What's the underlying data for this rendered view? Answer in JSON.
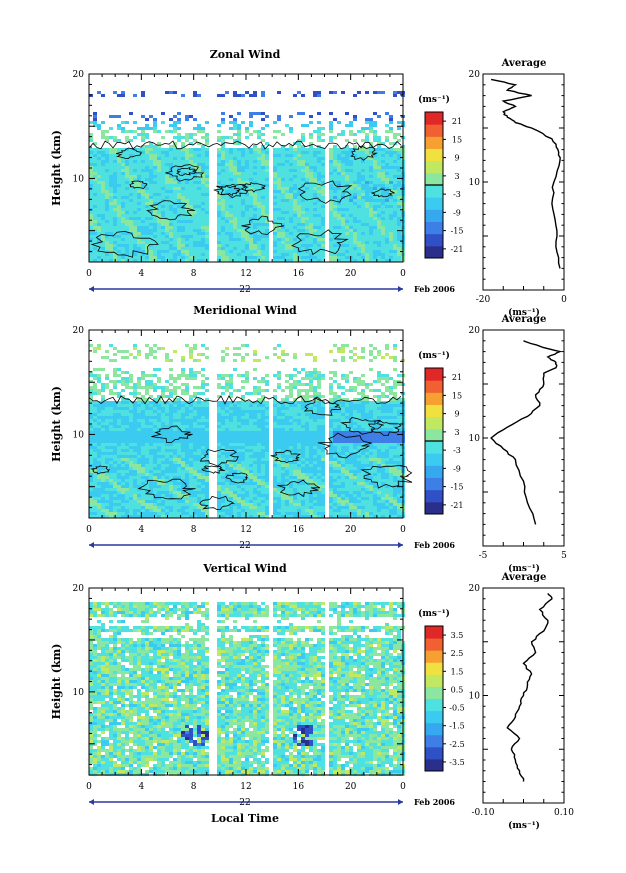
{
  "figure": {
    "xlabel": "Local Time",
    "date_label": "Feb 2006",
    "x_ticks": [
      "0",
      "4",
      "8",
      "12",
      "16",
      "20",
      "0"
    ],
    "y_ticks": [
      "20",
      "10"
    ],
    "ylabel": "Height (km)"
  },
  "chart_data": [
    {
      "type": "heatmap",
      "title": "Zonal Wind",
      "day_label": "22",
      "xlim": [
        0,
        24
      ],
      "ylim": [
        2,
        20
      ],
      "colorbar": {
        "unit": "(ms⁻¹)",
        "ticks": [
          "21",
          "15",
          "9",
          "3",
          "-3",
          "-9",
          "-15",
          "-21"
        ],
        "range": [
          -24,
          24
        ],
        "contour": 0
      },
      "data_gaps_hours": [
        [
          9.2,
          9.8
        ],
        [
          13.8,
          14.2
        ],
        [
          18.0,
          18.4
        ]
      ],
      "profile": {
        "title": "Average",
        "xlim": [
          -20,
          0
        ],
        "x_ticks": [
          "-20",
          "0"
        ],
        "xlabel": "(ms⁻¹)",
        "height_km": [
          2,
          4,
          6,
          8,
          10,
          12,
          13,
          14,
          15,
          15.5,
          16,
          16.5,
          17,
          17.5,
          18,
          18.5,
          19,
          19.5
        ],
        "values": [
          -1,
          -2,
          -2,
          -3,
          -2.5,
          -1,
          -1.5,
          -3,
          -8,
          -12,
          -14,
          -15,
          -12,
          -15,
          -8,
          -14,
          -12,
          -18
        ]
      }
    },
    {
      "type": "heatmap",
      "title": "Meridional Wind",
      "day_label": "22",
      "xlim": [
        0,
        24
      ],
      "ylim": [
        2,
        20
      ],
      "colorbar": {
        "unit": "(ms⁻¹)",
        "ticks": [
          "21",
          "15",
          "9",
          "3",
          "-3",
          "-9",
          "-15",
          "-21"
        ],
        "range": [
          -24,
          24
        ],
        "contour": 0
      },
      "data_gaps_hours": [
        [
          9.2,
          9.8
        ],
        [
          13.8,
          14.2
        ],
        [
          18.0,
          18.4
        ]
      ],
      "profile": {
        "title": "Average",
        "xlim": [
          -5,
          5
        ],
        "x_ticks": [
          "-5",
          "5"
        ],
        "xlabel": "(ms⁻¹)",
        "height_km": [
          2,
          4,
          6,
          8,
          9,
          10,
          11,
          12,
          13,
          14,
          15,
          16,
          16.5,
          17,
          17.5,
          18,
          18.5,
          19
        ],
        "values": [
          1.5,
          0.5,
          0,
          -1,
          -2.5,
          -4,
          -2,
          0.5,
          2,
          1.5,
          2.5,
          2.5,
          4,
          4,
          3,
          4.5,
          2,
          0
        ]
      }
    },
    {
      "type": "heatmap",
      "title": "Vertical Wind",
      "day_label": "22",
      "xlim": [
        0,
        24
      ],
      "ylim": [
        2,
        20
      ],
      "colorbar": {
        "unit": "(ms⁻¹)",
        "ticks": [
          "3.5",
          "2.5",
          "1.5",
          "0.5",
          "-0.5",
          "-1.5",
          "-2.5",
          "-3.5"
        ],
        "range": [
          -4,
          4
        ]
      },
      "data_gaps_hours": [
        [
          9.2,
          9.8
        ],
        [
          13.8,
          14.2
        ],
        [
          18.0,
          18.4
        ]
      ],
      "profile": {
        "title": "Average",
        "xlim": [
          -0.1,
          0.1
        ],
        "x_ticks": [
          "-0.10",
          "0.10"
        ],
        "xlabel": "(ms⁻¹)",
        "height_km": [
          2,
          3,
          4,
          5,
          6,
          7,
          8,
          9,
          10,
          11,
          12,
          13,
          14,
          15,
          16,
          17,
          18,
          19,
          19.5
        ],
        "values": [
          0.0,
          -0.01,
          -0.02,
          -0.03,
          -0.01,
          -0.04,
          -0.02,
          -0.01,
          0.0,
          0.01,
          0.02,
          0.0,
          0.03,
          0.02,
          0.05,
          0.06,
          0.04,
          0.07,
          0.06
        ]
      }
    }
  ]
}
